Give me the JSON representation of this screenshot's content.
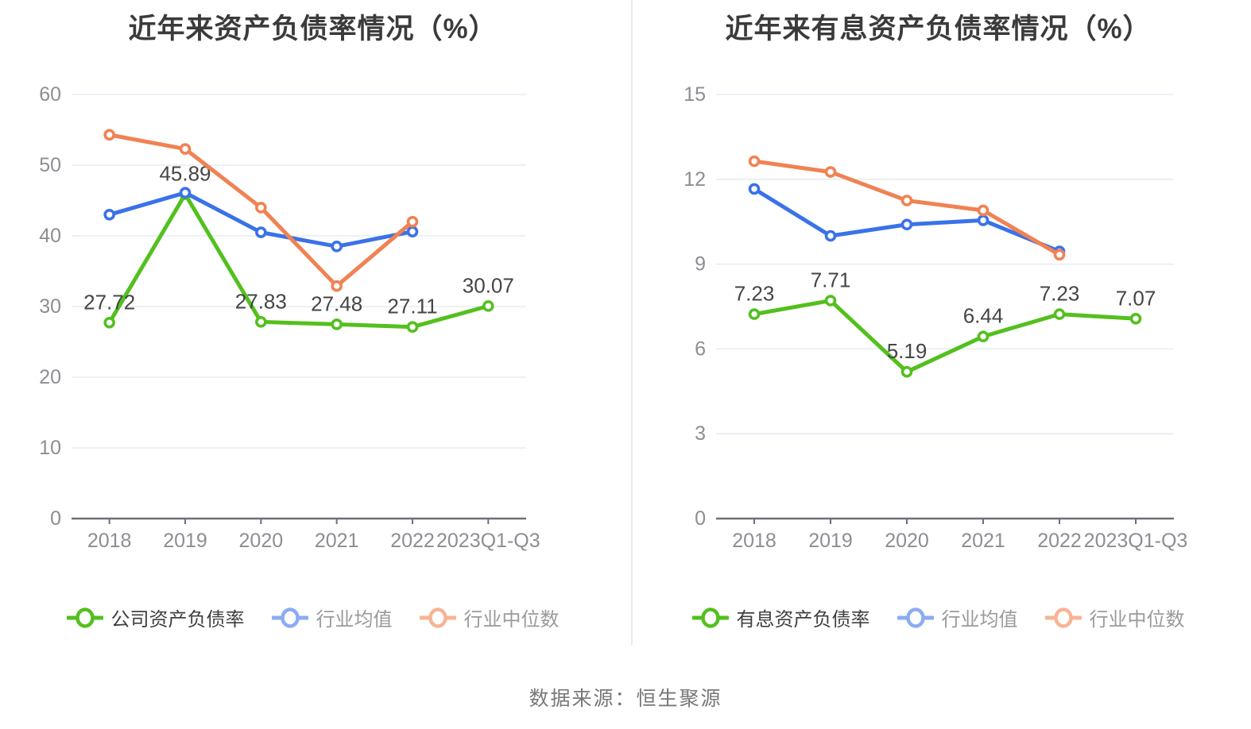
{
  "page": {
    "source_caption": "数据来源：恒生聚源"
  },
  "style": {
    "background": "#ffffff",
    "title_color": "#3b3b3b",
    "grid_color": "#e3e8f2",
    "axis_color": "#6e7079",
    "tick_label_color": "#8c8e93",
    "data_label_color": "#454545",
    "source_color": "#787878",
    "divider_color": "#e9e9e9",
    "legend_emphasis_text": "#3f3f3f",
    "legend_muted_text": "#9a9a9a",
    "marker_fill": "#ffffff"
  },
  "chart_data": [
    {
      "type": "line",
      "title": "近年来资产负债率情况（%）",
      "categories": [
        "2018",
        "2019",
        "2020",
        "2021",
        "2022",
        "2023Q1-Q3"
      ],
      "ylim": [
        0,
        60
      ],
      "y_ticks": [
        0,
        10,
        20,
        30,
        40,
        50,
        60
      ],
      "grid": true,
      "legend_position": "bottom",
      "series": [
        {
          "name": "公司资产负债率",
          "color": "#53c01e",
          "legend_color": "#53c01e",
          "emphasis": true,
          "show_labels": true,
          "values": [
            27.72,
            45.89,
            27.83,
            27.48,
            27.11,
            30.07
          ]
        },
        {
          "name": "行业均值",
          "color": "#3a72e8",
          "legend_color": "#8bacf3",
          "emphasis": false,
          "show_labels": false,
          "values": [
            43.0,
            46.1,
            40.5,
            38.5,
            40.6,
            null
          ]
        },
        {
          "name": "行业中位数",
          "color": "#f08253",
          "legend_color": "#f7b494",
          "emphasis": false,
          "show_labels": false,
          "values": [
            54.3,
            52.3,
            44.0,
            32.9,
            42.0,
            null
          ]
        }
      ]
    },
    {
      "type": "line",
      "title": "近年来有息资产负债率情况（%）",
      "categories": [
        "2018",
        "2019",
        "2020",
        "2021",
        "2022",
        "2023Q1-Q3"
      ],
      "ylim": [
        0,
        15
      ],
      "y_ticks": [
        0,
        3,
        6,
        9,
        12,
        15
      ],
      "grid": true,
      "legend_position": "bottom",
      "series": [
        {
          "name": "有息资产负债率",
          "color": "#53c01e",
          "legend_color": "#53c01e",
          "emphasis": true,
          "show_labels": true,
          "values": [
            7.23,
            7.71,
            5.19,
            6.44,
            7.23,
            7.07
          ]
        },
        {
          "name": "行业均值",
          "color": "#3a72e8",
          "legend_color": "#8bacf3",
          "emphasis": false,
          "show_labels": false,
          "values": [
            11.66,
            10.0,
            10.4,
            10.55,
            9.45,
            null
          ]
        },
        {
          "name": "行业中位数",
          "color": "#f08253",
          "legend_color": "#f7b494",
          "emphasis": false,
          "show_labels": false,
          "values": [
            12.64,
            12.26,
            11.25,
            10.9,
            9.33,
            null
          ]
        }
      ]
    }
  ]
}
